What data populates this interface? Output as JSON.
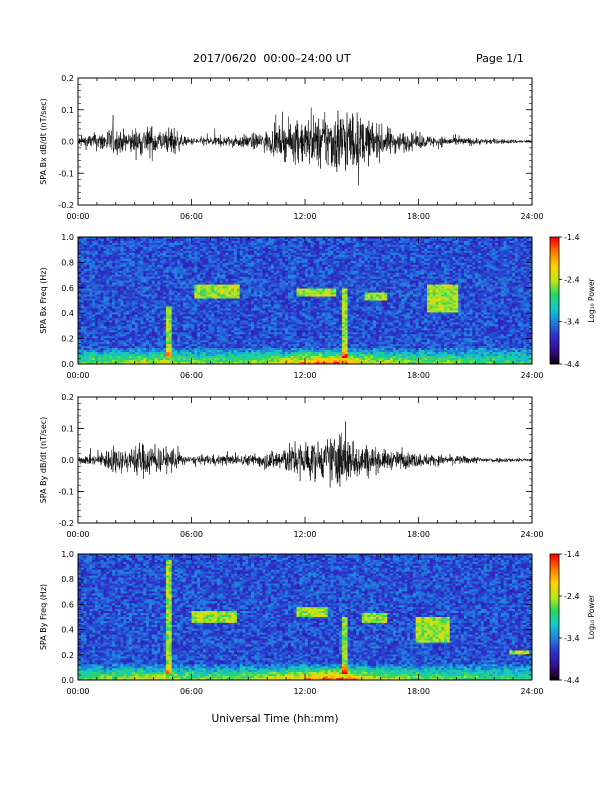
{
  "header": {
    "date_range": "2017/06/20  00:00–24:00 UT",
    "page": "Page 1/1"
  },
  "footer": {
    "xlabel": "Universal Time (hh:mm)"
  },
  "colors": {
    "trace": "#000000",
    "colormap": [
      "#000000",
      "#3a0b8a",
      "#2d2cc9",
      "#1f7de0",
      "#12c8d0",
      "#26d860",
      "#c0e616",
      "#ffd200",
      "#ff7a00",
      "#ff0000"
    ]
  },
  "chart_data": [
    {
      "type": "line",
      "id": "bx_trace",
      "ylabel": "SPA Bx dB/dt (nT/sec)",
      "xlim": [
        0,
        24
      ],
      "ylim": [
        -0.2,
        0.2
      ],
      "x_ticks": [
        "00:00",
        "06:00",
        "12:00",
        "18:00",
        "24:00"
      ],
      "y_ticks": [
        "0.2",
        "0.1",
        "0.0",
        "-0.1",
        "-0.2"
      ],
      "envelope": {
        "x": [
          0,
          1,
          1.8,
          2.5,
          3.2,
          4,
          4.6,
          5,
          5.5,
          6,
          7,
          8,
          9,
          10,
          11,
          11.5,
          12,
          13,
          13.8,
          14.5,
          15,
          16,
          17,
          18,
          19,
          20,
          21,
          22,
          23,
          24
        ],
        "amplitude": [
          0.03,
          0.05,
          0.08,
          0.06,
          0.08,
          0.09,
          0.05,
          0.1,
          0.03,
          0.02,
          0.03,
          0.03,
          0.04,
          0.06,
          0.1,
          0.12,
          0.14,
          0.15,
          0.2,
          0.18,
          0.14,
          0.09,
          0.06,
          0.04,
          0.03,
          0.025,
          0.02,
          0.015,
          0.012,
          0.01
        ]
      }
    },
    {
      "type": "heatmap",
      "id": "bx_spec",
      "ylabel": "SPA Bx Freq (Hz)",
      "xlim": [
        0,
        24
      ],
      "ylim": [
        0,
        1.0
      ],
      "x_ticks": [
        "00:00",
        "06:00",
        "12:00",
        "18:00",
        "24:00"
      ],
      "y_ticks": [
        "1.0",
        "0.8",
        "0.6",
        "0.4",
        "0.2",
        "0.0"
      ],
      "colorbar": {
        "label": "Log₁₀ Power",
        "range": [
          -4.4,
          -1.4
        ],
        "ticks": [
          "-1.4",
          "-2.4",
          "-3.4",
          "-4.4"
        ]
      },
      "features": [
        {
          "x": 6.2,
          "y": 0.52,
          "w": 2.4,
          "h": 0.1
        },
        {
          "x": 11.6,
          "y": 0.53,
          "w": 2.0,
          "h": 0.06
        },
        {
          "x": 15.2,
          "y": 0.5,
          "w": 1.2,
          "h": 0.06
        },
        {
          "x": 18.5,
          "y": 0.4,
          "w": 1.6,
          "h": 0.22
        },
        {
          "x": 4.6,
          "y": 0.05,
          "w": 0.3,
          "h": 0.4
        },
        {
          "x": 13.9,
          "y": 0.05,
          "w": 0.3,
          "h": 0.55
        }
      ]
    },
    {
      "type": "line",
      "id": "by_trace",
      "ylabel": "SPA By dB/dt (nT/sec)",
      "xlim": [
        0,
        24
      ],
      "ylim": [
        -0.2,
        0.2
      ],
      "x_ticks": [
        "00:00",
        "06:00",
        "12:00",
        "18:00",
        "24:00"
      ],
      "y_ticks": [
        "0.2",
        "0.1",
        "0.0",
        "-0.1",
        "-0.2"
      ],
      "envelope": {
        "x": [
          0,
          1,
          1.8,
          2.5,
          3.2,
          4,
          4.6,
          5,
          5.5,
          6,
          7,
          8,
          9,
          10,
          11,
          11.5,
          12,
          13,
          13.8,
          14.5,
          15,
          16,
          17,
          18,
          19,
          20,
          21,
          22,
          23,
          24
        ],
        "amplitude": [
          0.02,
          0.03,
          0.08,
          0.06,
          0.1,
          0.09,
          0.06,
          0.08,
          0.03,
          0.02,
          0.03,
          0.03,
          0.03,
          0.05,
          0.08,
          0.1,
          0.12,
          0.1,
          0.18,
          0.12,
          0.1,
          0.06,
          0.05,
          0.04,
          0.03,
          0.025,
          0.02,
          0.015,
          0.012,
          0.01
        ]
      }
    },
    {
      "type": "heatmap",
      "id": "by_spec",
      "ylabel": "SPA By Freq (Hz)",
      "xlim": [
        0,
        24
      ],
      "ylim": [
        0,
        1.0
      ],
      "x_ticks": [
        "00:00",
        "06:00",
        "12:00",
        "18:00",
        "24:00"
      ],
      "y_ticks": [
        "1.0",
        "0.8",
        "0.6",
        "0.4",
        "0.2",
        "0.0"
      ],
      "colorbar": {
        "label": "Log₁₀ Power",
        "range": [
          -4.4,
          -1.4
        ],
        "ticks": [
          "-1.4",
          "-2.4",
          "-3.4",
          "-4.4"
        ]
      },
      "features": [
        {
          "x": 6.0,
          "y": 0.45,
          "w": 2.4,
          "h": 0.1
        },
        {
          "x": 11.6,
          "y": 0.5,
          "w": 1.6,
          "h": 0.08
        },
        {
          "x": 15.0,
          "y": 0.45,
          "w": 1.4,
          "h": 0.08
        },
        {
          "x": 17.9,
          "y": 0.3,
          "w": 1.8,
          "h": 0.2
        },
        {
          "x": 4.6,
          "y": 0.05,
          "w": 0.3,
          "h": 0.9
        },
        {
          "x": 13.9,
          "y": 0.05,
          "w": 0.3,
          "h": 0.45
        },
        {
          "x": 22.8,
          "y": 0.2,
          "w": 1.0,
          "h": 0.04
        }
      ]
    }
  ]
}
